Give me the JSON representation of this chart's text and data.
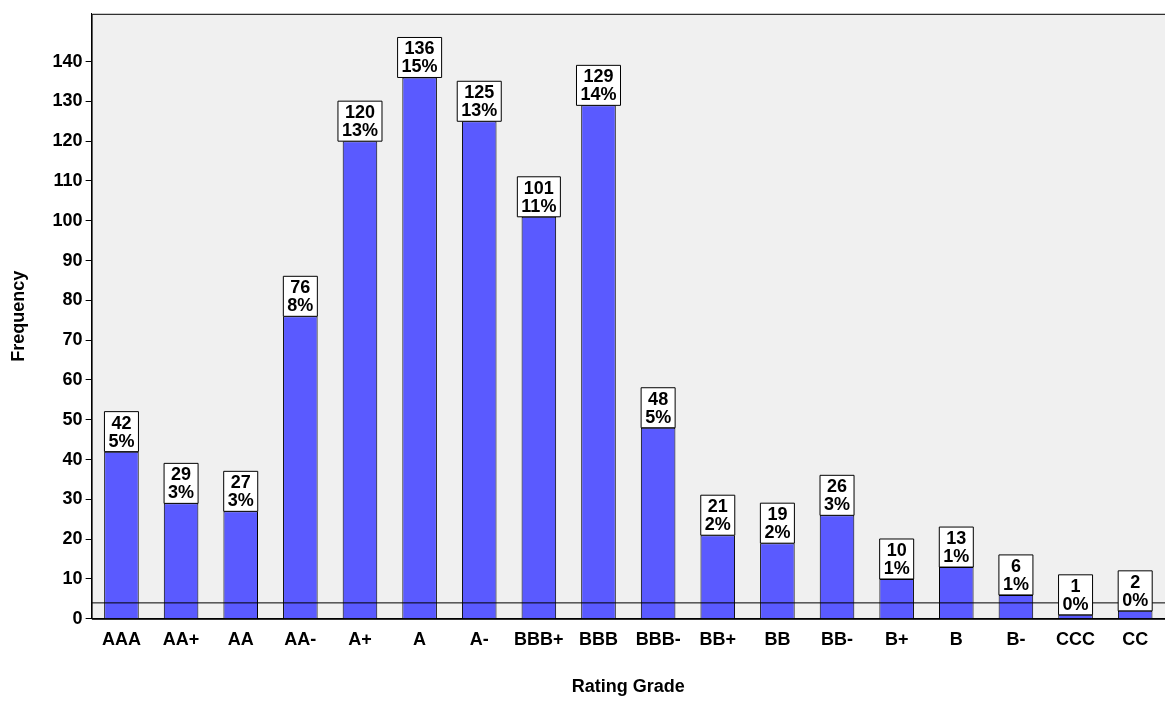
{
  "chart_data": {
    "type": "bar",
    "xlabel": "Rating Grade",
    "ylabel": "Frequency",
    "categories": [
      "AAA",
      "AA+",
      "AA",
      "AA-",
      "A+",
      "A",
      "A-",
      "BBB+",
      "BBB",
      "BBB-",
      "BB+",
      "BB",
      "BB-",
      "B+",
      "B",
      "B-",
      "CCC",
      "CC"
    ],
    "values": [
      42,
      29,
      27,
      76,
      120,
      136,
      125,
      101,
      129,
      48,
      21,
      19,
      26,
      10,
      13,
      6,
      1,
      2
    ],
    "value_labels": [
      "42\n5%",
      "29\n3%",
      "27\n3%",
      "76\n8%",
      "120\n13%",
      "136\n15%",
      "125\n13%",
      "101\n11%",
      "129\n14%",
      "48\n5%",
      "21\n2%",
      "19\n2%",
      "26\n3%",
      "10\n1%",
      "13\n1%",
      "6\n1%",
      "1\n0%",
      "2\n0%"
    ],
    "color": "#5a5aff",
    "ylim": [
      0,
      152
    ],
    "yticks": [
      0,
      10,
      20,
      30,
      40,
      50,
      60,
      70,
      80,
      90,
      100,
      110,
      120,
      130,
      140
    ],
    "ref_lines": [
      {
        "axis": "y",
        "value": 4,
        "color": "#000000"
      }
    ],
    "grid": false,
    "legend": false
  }
}
